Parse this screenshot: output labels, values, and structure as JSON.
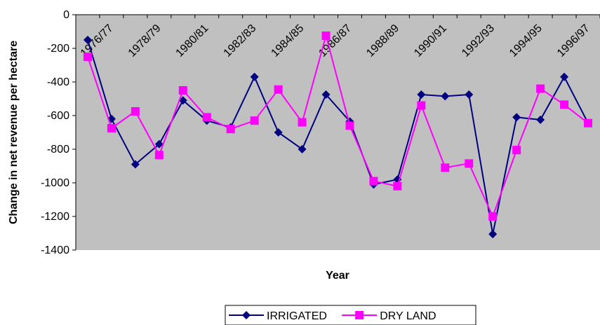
{
  "chart_data": {
    "type": "line",
    "title": "",
    "xlabel": "Year",
    "ylabel": "Change in net revenue per hectare",
    "ylim": [
      -1400,
      0
    ],
    "yticks": [
      0,
      -200,
      -400,
      -600,
      -800,
      -1000,
      -1200,
      -1400
    ],
    "x_tick_labels": [
      "1976/77",
      "1978/79",
      "1980/81",
      "1982/83",
      "1984/85",
      "1986/87",
      "1988/89",
      "1990/91",
      "1992/93",
      "1994/95",
      "1996/97"
    ],
    "x_tick_every": 2,
    "num_points": 22,
    "grid": false,
    "legend_position": "bottom",
    "plot_background": "#c0c0c0",
    "series": [
      {
        "name": "IRRIGATED",
        "color": "#000080",
        "marker": "diamond",
        "values": [
          -150,
          -620,
          -890,
          -770,
          -510,
          -630,
          -670,
          -370,
          -700,
          -800,
          -475,
          -635,
          -1010,
          -980,
          -475,
          -485,
          -475,
          -1305,
          -610,
          -625,
          -370,
          -645
        ]
      },
      {
        "name": "DRY LAND",
        "color": "#ff00ff",
        "marker": "square",
        "values": [
          -250,
          -675,
          -575,
          -835,
          -450,
          -610,
          -680,
          -630,
          -445,
          -640,
          -125,
          -660,
          -990,
          -1020,
          -540,
          -910,
          -885,
          -1200,
          -805,
          -440,
          -535,
          -645
        ]
      }
    ]
  }
}
